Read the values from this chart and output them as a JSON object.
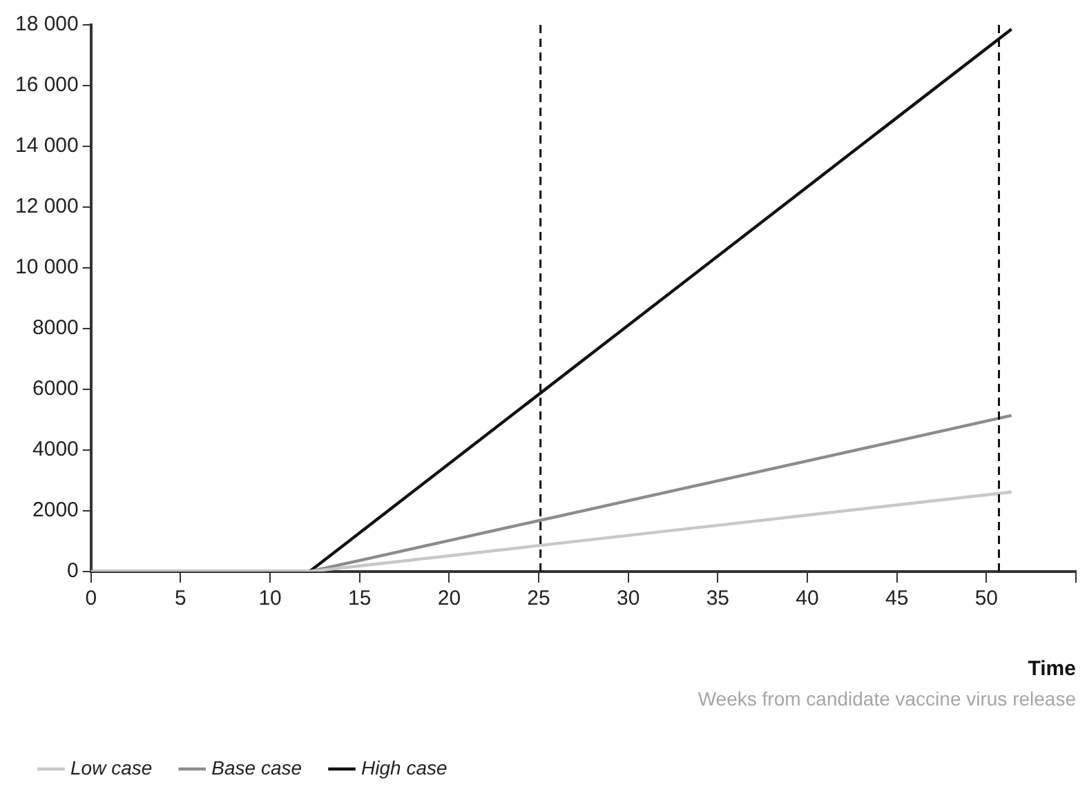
{
  "chart_data": {
    "type": "line",
    "xlabel": "Time",
    "annotations": [
      "Weeks from candidate vaccine virus release"
    ],
    "xlim": [
      0,
      55
    ],
    "xticks": [
      0,
      5,
      10,
      15,
      20,
      25,
      30,
      35,
      40,
      45,
      50,
      {
        "value": 55,
        "label": null
      }
    ],
    "ylim": [
      0,
      18000
    ],
    "yticks": [
      0,
      2000,
      4000,
      6000,
      8000,
      {
        "value": 10000,
        "label": "10 000"
      },
      {
        "value": 12000,
        "label": "12 000"
      },
      {
        "value": 14000,
        "label": "14 000"
      },
      {
        "value": 16000,
        "label": "16 000"
      },
      {
        "value": 18000,
        "label": "18 000"
      }
    ],
    "grid": false,
    "legend": "bottom left",
    "marker": "none",
    "line_style": "solid",
    "series": [
      {
        "name": "Low case",
        "color": "#c8c8c8",
        "x": [
          0,
          12.2,
          51.4
        ],
        "values": [
          0,
          0,
          2620
        ]
      },
      {
        "name": "Base case",
        "color": "#8c8c8c",
        "x": [
          0,
          12.2,
          51.4
        ],
        "values": [
          0,
          0,
          5140
        ]
      },
      {
        "name": "High case",
        "color": "#111111",
        "x": [
          0,
          12.2,
          51.4
        ],
        "values": [
          0,
          0,
          17860
        ]
      }
    ],
    "ref_lines": [
      {
        "axis": "x",
        "value": 25.1,
        "color": "#111111",
        "line_style": "dashed"
      },
      {
        "axis": "x",
        "value": 50.7,
        "color": "#111111",
        "line_style": "dashed"
      }
    ]
  }
}
